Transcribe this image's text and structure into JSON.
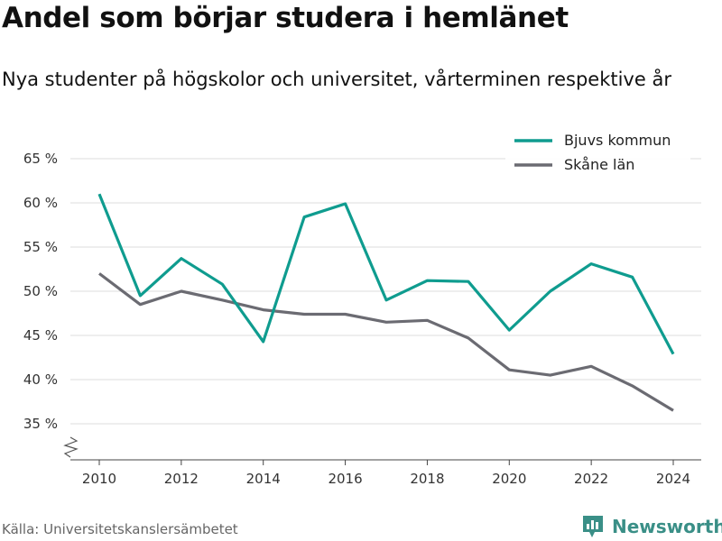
{
  "chart_data": {
    "type": "line",
    "title": "Andel som börjar studera i hemlänet",
    "subtitle": "Nya studenter på högskolor och universitet, vårterminen respektive år",
    "x": [
      2010,
      2011,
      2012,
      2013,
      2014,
      2015,
      2016,
      2017,
      2018,
      2019,
      2020,
      2021,
      2022,
      2023,
      2024
    ],
    "series": [
      {
        "name": "Bjuvs kommun",
        "color": "#0f9c8f",
        "values": [
          61.0,
          49.5,
          53.7,
          50.8,
          44.3,
          58.4,
          59.9,
          49.0,
          51.2,
          51.1,
          45.6,
          50.0,
          53.1,
          51.6,
          42.9
        ]
      },
      {
        "name": "Skåne län",
        "color": "#6b6b72",
        "values": [
          52.0,
          48.5,
          50.0,
          49.0,
          47.9,
          47.4,
          47.4,
          46.5,
          46.7,
          44.7,
          41.1,
          40.5,
          41.5,
          39.3,
          36.5
        ]
      }
    ],
    "xticks": [
      2010,
      2012,
      2014,
      2016,
      2018,
      2020,
      2022,
      2024
    ],
    "yticks": [
      35,
      40,
      45,
      50,
      55,
      60,
      65
    ],
    "ytick_suffix": " %",
    "ylim": [
      35,
      65
    ],
    "xlim": [
      2010,
      2024
    ],
    "grid": true,
    "legend_position": "top-right",
    "axis_break": true
  },
  "footer": {
    "source": "Källa: Universitetskanslersämbetet",
    "brand": "Newsworthy",
    "brand_color": "#3a8f87"
  }
}
